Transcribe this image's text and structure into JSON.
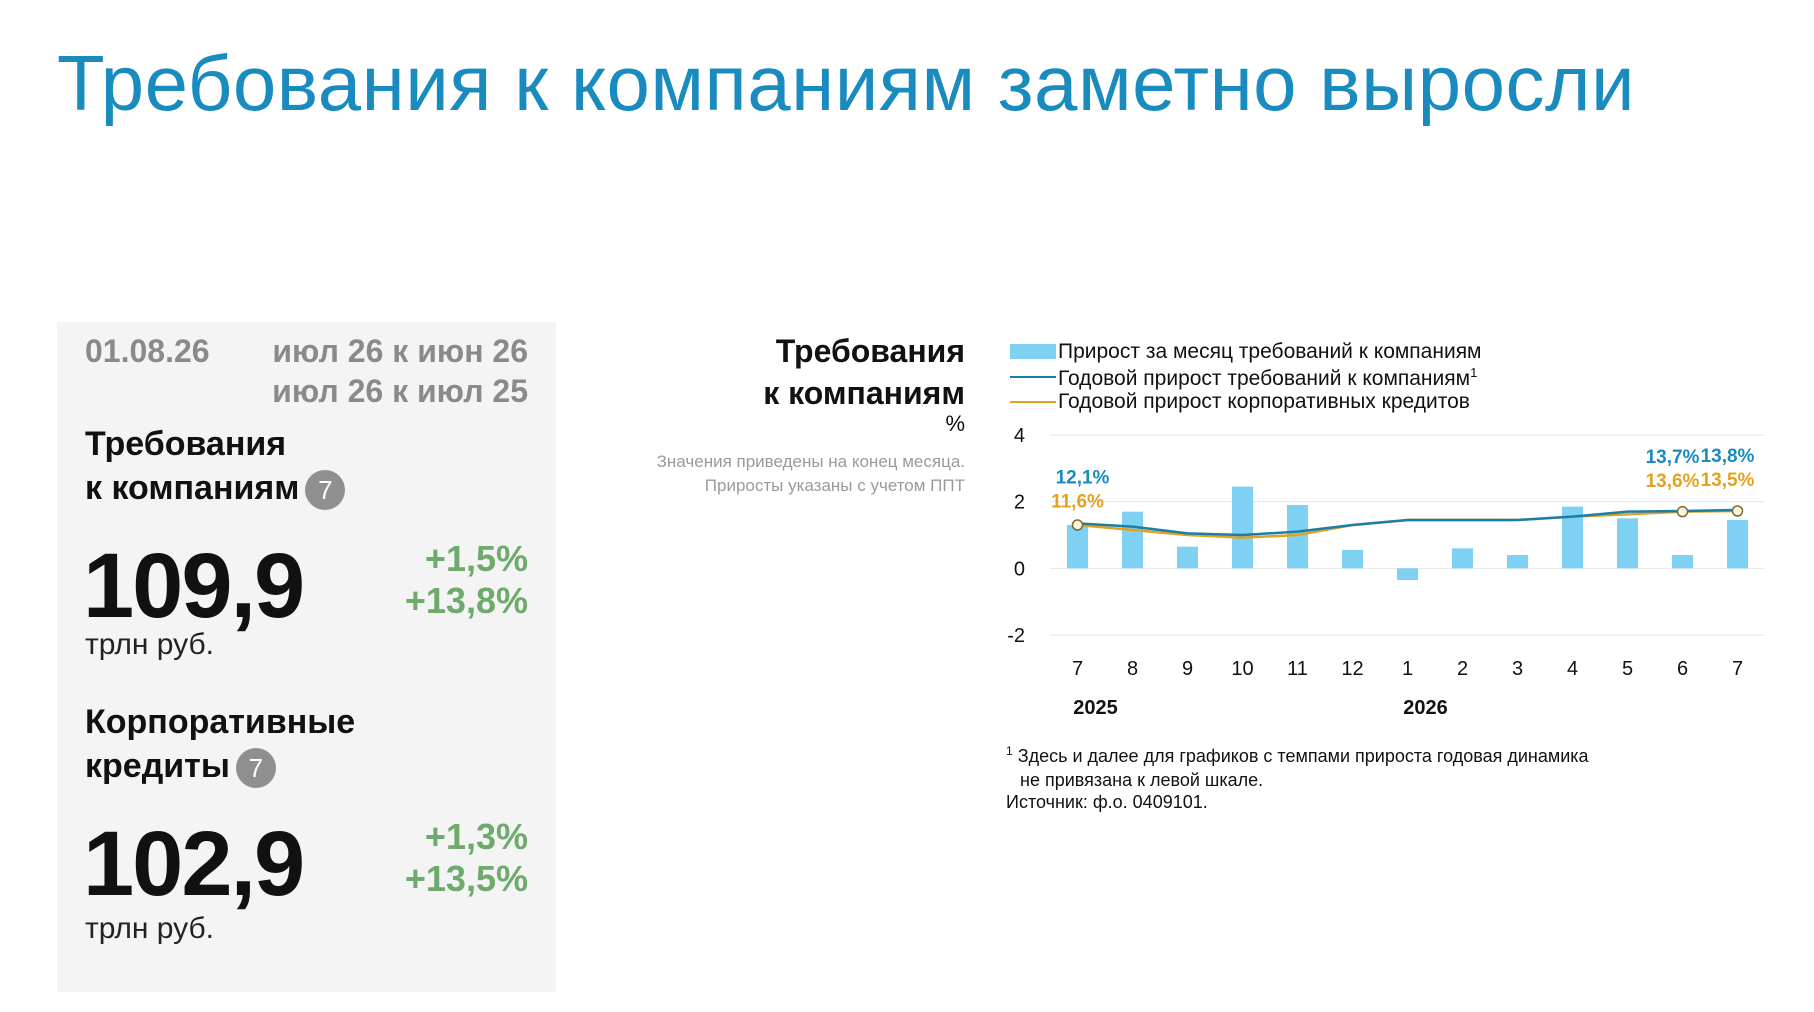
{
  "header": {
    "title": "Требования к компаниям заметно выросли"
  },
  "panel": {
    "date": "01.08.26",
    "period_mom": "июл 26 к июн 26",
    "period_yoy": "июл 26 к июл 25",
    "metrics": [
      {
        "title_line1": "Требования",
        "title_line2": "к компаниям",
        "badge": "7",
        "value": "109,9",
        "unit": "трлн руб.",
        "growth_mom": "+1,5%",
        "growth_yoy": "+13,8%"
      },
      {
        "title_line1": "Корпоративные",
        "title_line2": "кредиты",
        "badge": "7",
        "value": "102,9",
        "unit": "трлн руб.",
        "growth_mom": "+1,3%",
        "growth_yoy": "+13,5%"
      }
    ]
  },
  "chart_block": {
    "title_line1": "Требования",
    "title_line2": "к компаниям",
    "unit": "%",
    "note_line1": "Значения приведены на конец месяца.",
    "note_line2": "Приросты указаны с учетом ППТ",
    "footnote_marker": "1",
    "footnote_line1": "Здесь и далее для графиков с темпами прироста годовая динамика",
    "footnote_line2": "не привязана к левой шкале.",
    "source": "Источник: ф.о. 0409101."
  },
  "colors": {
    "title": "#1a8bbf",
    "bars": "#7fd1f3",
    "line_claims": "#1a7fa8",
    "line_loans": "#e3a21f",
    "growth_text": "#6daa6b",
    "label_claims": "#1a8bbf",
    "label_loans": "#e3a21f"
  },
  "chart_data": {
    "type": "bar",
    "categories": [
      "7",
      "8",
      "9",
      "10",
      "11",
      "12",
      "1",
      "2",
      "3",
      "4",
      "5",
      "6",
      "7"
    ],
    "year_labels": [
      {
        "category_index": 0,
        "text": "2025"
      },
      {
        "category_index": 6,
        "text": "2026"
      }
    ],
    "ylim": [
      -2,
      4
    ],
    "yticks": [
      -2,
      0,
      2,
      4
    ],
    "grid": true,
    "legend_position": "top",
    "series": [
      {
        "name": "Прирост за месяц требований к компаниям",
        "kind": "bar",
        "values": [
          1.3,
          1.7,
          0.65,
          2.45,
          1.9,
          0.55,
          -0.35,
          0.6,
          0.4,
          1.85,
          1.5,
          0.4,
          1.45
        ]
      },
      {
        "name": "Годовой прирост требований к компаниям",
        "name_sup": "1",
        "kind": "line",
        "values": [
          1.35,
          1.25,
          1.05,
          1.0,
          1.1,
          1.3,
          1.45,
          1.45,
          1.45,
          1.55,
          1.7,
          1.72,
          1.75
        ],
        "labels": [
          {
            "index": 0,
            "text": "12,1%"
          },
          {
            "index": 11,
            "text": "13,7%"
          },
          {
            "index": 12,
            "text": "13,8%"
          }
        ]
      },
      {
        "name": "Годовой прирост корпоративных кредитов",
        "kind": "line",
        "values": [
          1.3,
          1.15,
          1.0,
          0.92,
          1.0,
          1.3,
          1.45,
          1.45,
          1.45,
          1.55,
          1.62,
          1.7,
          1.72
        ],
        "labels": [
          {
            "index": 0,
            "text": "11,6%"
          },
          {
            "index": 11,
            "text": "13,6%"
          },
          {
            "index": 12,
            "text": "13,5%"
          }
        ]
      }
    ]
  }
}
